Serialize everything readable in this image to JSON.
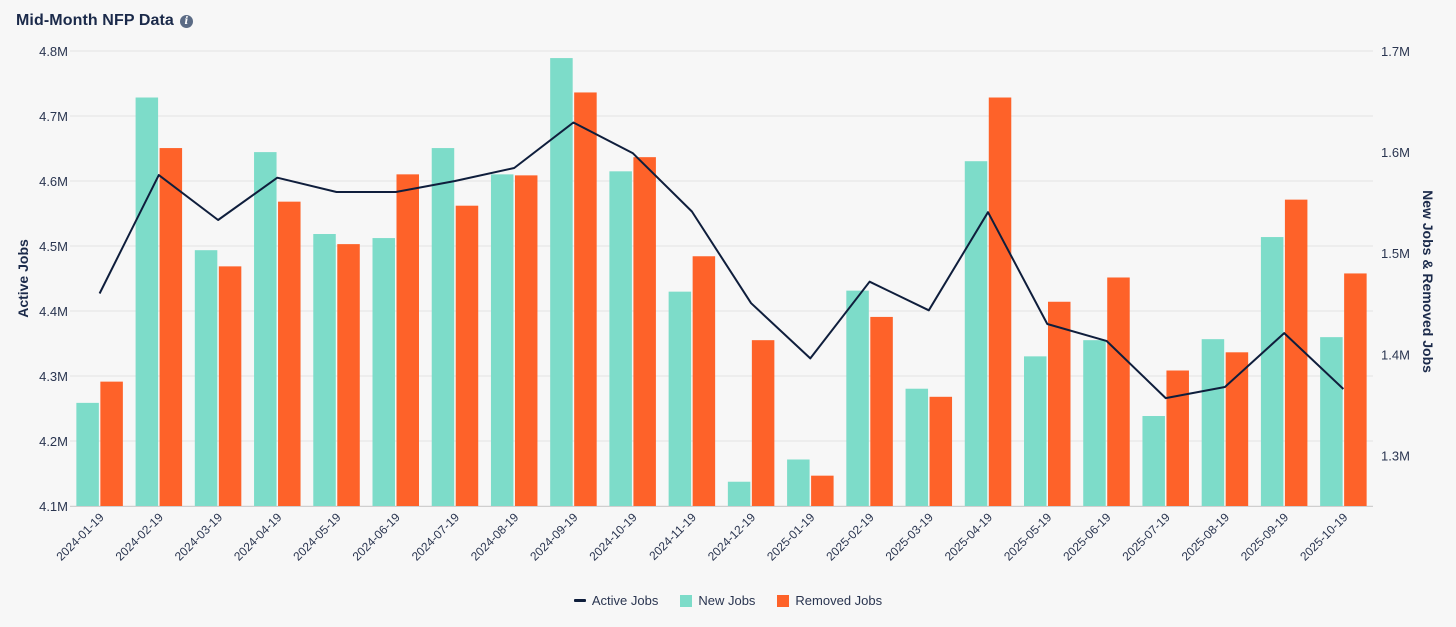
{
  "header": {
    "title": "Mid-Month NFP Data",
    "info_icon": "info-icon"
  },
  "colors": {
    "active": "#0f1e3c",
    "new": "#7ddcc9",
    "removed": "#fe6229",
    "grid": "#e3e3e3"
  },
  "legend": {
    "active": "Active Jobs",
    "new": "New Jobs",
    "removed": "Removed Jobs"
  },
  "chart_data": {
    "type": "bar",
    "title": "Mid-Month NFP Data",
    "xlabel": "",
    "ylabel": "Active Jobs",
    "y2label": "New Jobs & Removed Jobs",
    "ylim": [
      4.1,
      4.8
    ],
    "y2lim": [
      1.25,
      1.7
    ],
    "yticks": [
      "4.1M",
      "4.2M",
      "4.3M",
      "4.4M",
      "4.5M",
      "4.6M",
      "4.7M",
      "4.8M"
    ],
    "y2ticks": [
      "1.3M",
      "1.4M",
      "1.5M",
      "1.6M",
      "1.7M"
    ],
    "categories": [
      "2024-01-19",
      "2024-02-19",
      "2024-03-19",
      "2024-04-19",
      "2024-05-19",
      "2024-06-19",
      "2024-07-19",
      "2024-08-19",
      "2024-09-19",
      "2024-10-19",
      "2024-11-19",
      "2024-12-19",
      "2025-01-19",
      "2025-02-19",
      "2025-03-19",
      "2025-04-19",
      "2025-05-19",
      "2025-06-19",
      "2025-07-19",
      "2025-08-19",
      "2025-09-19",
      "2025-10-19"
    ],
    "series": [
      {
        "name": "Active Jobs",
        "type": "line",
        "axis": "left",
        "values": [
          4.427,
          4.609,
          4.54,
          4.605,
          4.583,
          4.583,
          4.6,
          4.62,
          4.69,
          4.643,
          4.553,
          4.412,
          4.327,
          4.445,
          4.401,
          4.552,
          4.38,
          4.354,
          4.266,
          4.283,
          4.366,
          4.28
        ]
      },
      {
        "name": "New Jobs",
        "type": "bar",
        "axis": "right",
        "values": [
          1.352,
          1.654,
          1.503,
          1.6,
          1.519,
          1.515,
          1.604,
          1.578,
          1.693,
          1.581,
          1.462,
          1.274,
          1.296,
          1.463,
          1.366,
          1.591,
          1.398,
          1.414,
          1.339,
          1.415,
          1.516,
          1.417
        ]
      },
      {
        "name": "Removed Jobs",
        "type": "bar",
        "axis": "right",
        "values": [
          1.373,
          1.604,
          1.487,
          1.551,
          1.509,
          1.578,
          1.547,
          1.577,
          1.659,
          1.595,
          1.497,
          1.414,
          1.28,
          1.437,
          1.358,
          1.654,
          1.452,
          1.476,
          1.384,
          1.402,
          1.553,
          1.48
        ]
      }
    ]
  }
}
